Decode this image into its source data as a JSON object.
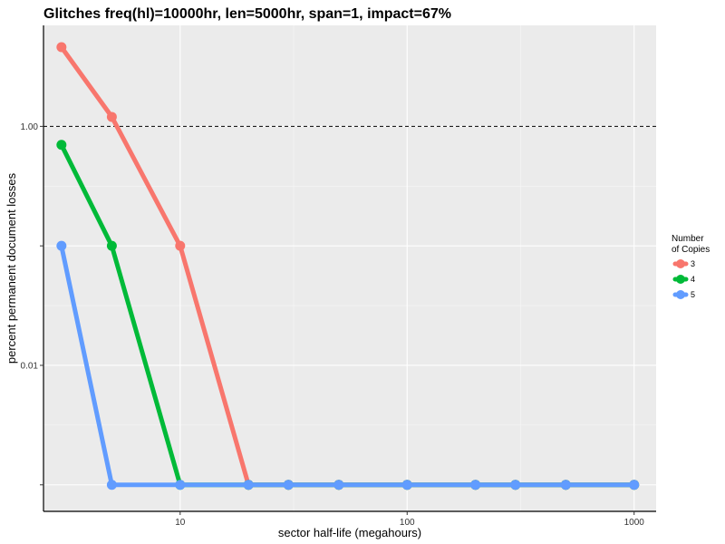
{
  "chart_data": {
    "type": "line",
    "title": "Glitches freq(hl)=10000hr, len=5000hr, span=1, impact=67%",
    "xlabel": "sector half-life (megahours)",
    "ylabel": "percent permanent document losses",
    "x_scale": "log",
    "y_scale": "log",
    "xlim": [
      2.5,
      1250
    ],
    "ylim": [
      0.0006,
      7
    ],
    "x_ticks": [
      10,
      100,
      1000
    ],
    "x_tick_labels": [
      "10",
      "100",
      "1000"
    ],
    "y_ticks": [
      0.001,
      0.01,
      0.1,
      1
    ],
    "y_tick_labels": [
      "",
      "0.01",
      "",
      "1.00"
    ],
    "reference_line": {
      "y": 1,
      "style": "dashed"
    },
    "grid": true,
    "legend": {
      "title_line1": "Number",
      "title_line2": "of Copies",
      "position": "right"
    },
    "series": [
      {
        "name": "3",
        "color": "#F8766D",
        "x": [
          3,
          5,
          10,
          20,
          30,
          50,
          100,
          200,
          300,
          500,
          1000
        ],
        "y": [
          4.6,
          1.2,
          0.1,
          0.001,
          0.001,
          0.001,
          0.001,
          0.001,
          0.001,
          0.001,
          0.001
        ]
      },
      {
        "name": "4",
        "color": "#00BA38",
        "x": [
          3,
          5,
          10,
          20,
          30,
          50,
          100,
          200,
          300,
          500,
          1000
        ],
        "y": [
          0.7,
          0.1,
          0.001,
          0.001,
          0.001,
          0.001,
          0.001,
          0.001,
          0.001,
          0.001,
          0.001
        ]
      },
      {
        "name": "5",
        "color": "#619CFF",
        "x": [
          3,
          5,
          10,
          20,
          30,
          50,
          100,
          200,
          300,
          500,
          1000
        ],
        "y": [
          0.1,
          0.001,
          0.001,
          0.001,
          0.001,
          0.001,
          0.001,
          0.001,
          0.001,
          0.001,
          0.001
        ]
      }
    ]
  }
}
